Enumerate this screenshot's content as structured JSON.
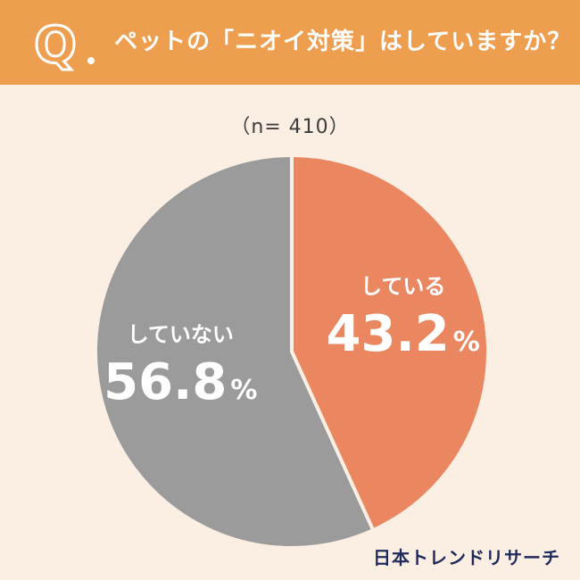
{
  "header": {
    "q_mark": "Q",
    "title": "ペットの「ニオイ対策」はしていますか？"
  },
  "sample_label": "（n= 410）",
  "colors": {
    "background": "#fbefe4",
    "header": "#ee9e4f",
    "doing": "#ea8660",
    "not_doing": "#9c9b9b",
    "brand": "#1e2a5a"
  },
  "chart_data": {
    "type": "pie",
    "title": "ペットの「ニオイ対策」はしていますか？",
    "n": 410,
    "slices": [
      {
        "label": "している",
        "value": 43.2,
        "display": "43.2",
        "unit": "%",
        "color": "#ea8660"
      },
      {
        "label": "していない",
        "value": 56.8,
        "display": "56.8",
        "unit": "%",
        "color": "#9c9b9b"
      }
    ],
    "start": "top",
    "direction": "clockwise"
  },
  "brand": "日本トレンドリサーチ"
}
